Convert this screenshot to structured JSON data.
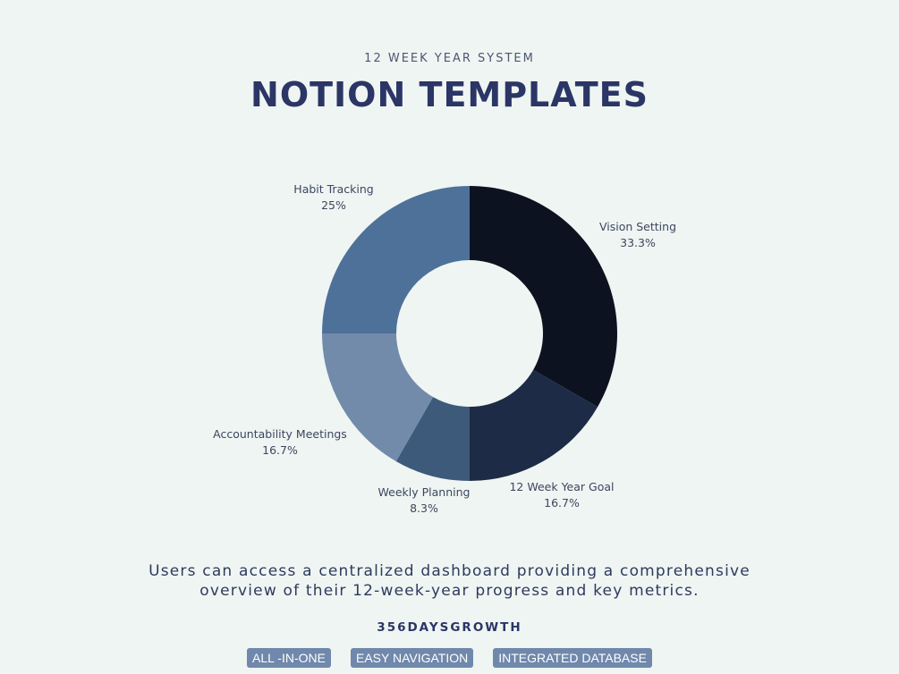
{
  "header": {
    "kicker": "12 WEEK YEAR SYSTEM",
    "title": "NOTION TEMPLATES"
  },
  "chart_data": {
    "type": "pie",
    "donut": true,
    "slices": [
      {
        "label": "Vision Setting",
        "value": 33.3,
        "value_label": "33.3%",
        "color": "#0d1220"
      },
      {
        "label": "12 Week Year Goal",
        "value": 16.7,
        "value_label": "16.7%",
        "color": "#1d2b46"
      },
      {
        "label": "Weekly Planning",
        "value": 8.3,
        "value_label": "8.3%",
        "color": "#3d5a7a"
      },
      {
        "label": "Accountability Meetings",
        "value": 16.7,
        "value_label": "16.7%",
        "color": "#738baa"
      },
      {
        "label": "Habit Tracking",
        "value": 25,
        "value_label": "25%",
        "color": "#4d7199"
      }
    ]
  },
  "description": "Users can access a centralized dashboard providing a comprehensive overview of their 12-week-year progress and key metrics.",
  "brand": "356DAYSGROWTH",
  "tags": [
    "ALL -IN-ONE",
    "EASY NAVIGATION",
    "INTEGRATED DATABASE"
  ]
}
